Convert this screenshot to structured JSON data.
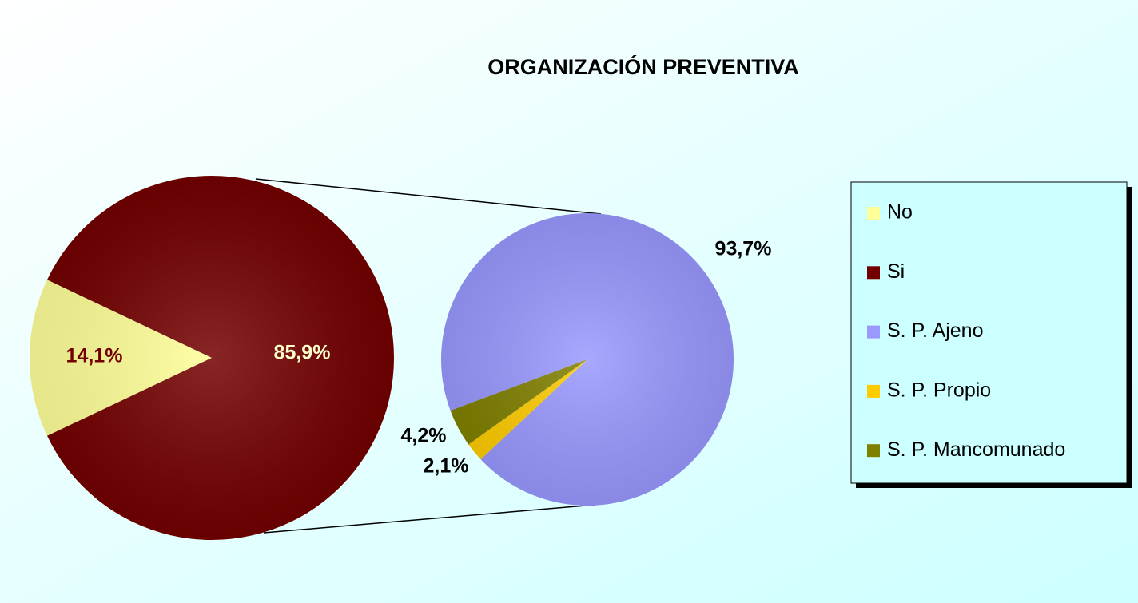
{
  "chart_data": [
    {
      "type": "pie",
      "title": "ORGANIZACIÓN PREVENTIVA",
      "categories": [
        "No",
        "Si"
      ],
      "values": [
        14.1,
        85.9
      ],
      "value_labels": [
        "14,1%",
        "85,9%"
      ],
      "colors": [
        "#ffff99",
        "#730000"
      ]
    },
    {
      "type": "pie",
      "categories": [
        "S. P. Ajeno",
        "S. P. Propio",
        "S. P. Mancomunado"
      ],
      "values": [
        93.7,
        2.1,
        4.2
      ],
      "value_labels": [
        "93,7%",
        "2,1%",
        "4,2%"
      ],
      "colors": [
        "#9999ff",
        "#ffcc00",
        "#808000"
      ]
    }
  ]
}
